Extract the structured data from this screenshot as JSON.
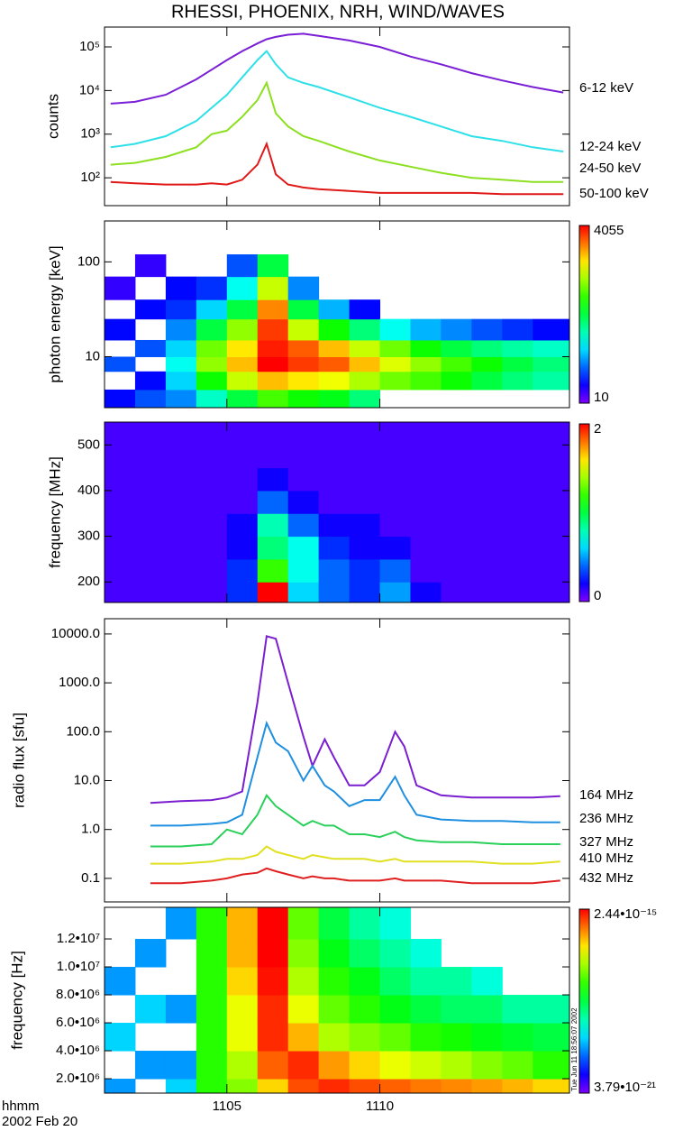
{
  "chart_data": [
    {
      "type": "line",
      "title": "RHESSI, PHOENIX, NRH, WIND/WAVES",
      "ylabel": "counts",
      "log_y": true,
      "xlim": [
        1101,
        1116.2
      ],
      "ylim": [
        23,
        285000
      ],
      "yticks": [
        {
          "value": 100,
          "label": "10²"
        },
        {
          "value": 1000,
          "label": "10³"
        },
        {
          "value": 10000,
          "label": "10⁴"
        },
        {
          "value": 100000,
          "label": "10⁵"
        }
      ],
      "x": [
        1101.2,
        1102,
        1103,
        1104,
        1104.5,
        1105,
        1105.5,
        1106,
        1106.3,
        1106.6,
        1107,
        1107.5,
        1108,
        1109,
        1110,
        1111,
        1112,
        1113,
        1114,
        1115,
        1116
      ],
      "series": [
        {
          "name": "6-12 keV",
          "color": "#7a1fd6",
          "values": [
            5000,
            5500,
            8000,
            18000,
            30000,
            50000,
            80000,
            120000,
            150000,
            170000,
            190000,
            200000,
            180000,
            140000,
            100000,
            60000,
            40000,
            25000,
            17000,
            12000,
            9000
          ]
        },
        {
          "name": "12-24 keV",
          "color": "#2ee0e8",
          "values": [
            500,
            600,
            900,
            2000,
            4000,
            8000,
            20000,
            50000,
            80000,
            40000,
            20000,
            15000,
            12000,
            7000,
            4000,
            2500,
            1500,
            900,
            700,
            500,
            400
          ]
        },
        {
          "name": "24-50 keV",
          "color": "#8ce020",
          "values": [
            200,
            220,
            300,
            500,
            1000,
            1200,
            2500,
            6000,
            15000,
            3000,
            1500,
            900,
            700,
            400,
            250,
            180,
            130,
            100,
            90,
            80,
            80
          ]
        },
        {
          "name": "50-100 keV",
          "color": "#e01818",
          "values": [
            80,
            75,
            70,
            70,
            75,
            70,
            90,
            200,
            600,
            120,
            70,
            60,
            55,
            50,
            45,
            45,
            45,
            45,
            42,
            42,
            42
          ]
        }
      ]
    },
    {
      "type": "heatmap",
      "ylabel": "photon energy [keV]",
      "log_y": true,
      "log_color": true,
      "xlim": [
        1101,
        1116.2
      ],
      "ylim": [
        2.9,
        270
      ],
      "yticks": [
        10,
        100
      ],
      "clim": [
        10,
        4055
      ],
      "cticks": [
        10,
        4055
      ],
      "x": [
        1101,
        1102,
        1103,
        1104,
        1105,
        1106,
        1107,
        1108,
        1109,
        1110,
        1111,
        1112,
        1113,
        1114,
        1115,
        1116.2
      ],
      "y": [
        2.9,
        4.5,
        7,
        10,
        15,
        25,
        40,
        70,
        120,
        270
      ],
      "z": [
        [
          20,
          null,
          30,
          null,
          20,
          null,
          15,
          null,
          null
        ],
        [
          30,
          20,
          null,
          30,
          null,
          20,
          null,
          15,
          null
        ],
        [
          40,
          60,
          80,
          60,
          40,
          25,
          20,
          null,
          null
        ],
        [
          100,
          300,
          600,
          500,
          200,
          60,
          25,
          null,
          null
        ],
        [
          200,
          800,
          1500,
          1200,
          600,
          200,
          80,
          30,
          null
        ],
        [
          400,
          1500,
          4055,
          3500,
          3000,
          2000,
          800,
          200,
          null
        ],
        [
          300,
          1200,
          3000,
          2500,
          800,
          200,
          40,
          null,
          null
        ],
        [
          250,
          1000,
          2500,
          1500,
          300,
          50,
          null,
          null,
          null
        ],
        [
          150,
          700,
          1500,
          800,
          150,
          20,
          null,
          null,
          null
        ],
        [
          null,
          500,
          900,
          500,
          80,
          null,
          null,
          null,
          null
        ],
        [
          null,
          400,
          600,
          300,
          50,
          null,
          null,
          null,
          null
        ],
        [
          null,
          300,
          400,
          200,
          40,
          null,
          null,
          null,
          null
        ],
        [
          null,
          200,
          300,
          150,
          30,
          null,
          null,
          null,
          null
        ],
        [
          null,
          150,
          200,
          120,
          25,
          null,
          null,
          null,
          null
        ],
        [
          null,
          120,
          150,
          100,
          20,
          null,
          null,
          null,
          null
        ]
      ]
    },
    {
      "type": "heatmap",
      "ylabel": "frequency [MHz]",
      "log_y": false,
      "log_color": false,
      "xlim": [
        1101,
        1116.2
      ],
      "ylim": [
        155,
        550
      ],
      "yticks": [
        200,
        300,
        400,
        500
      ],
      "clim": [
        0,
        2
      ],
      "cticks": [
        0,
        2
      ],
      "x": [
        1101,
        1102,
        1103,
        1104,
        1105,
        1106,
        1107,
        1108,
        1109,
        1110,
        1111,
        1112,
        1113,
        1114,
        1115,
        1116.2
      ],
      "y": [
        155,
        200,
        250,
        300,
        350,
        400,
        450,
        500,
        550
      ],
      "z": [
        [
          0.1,
          0.1,
          0.1,
          0.1,
          0.1,
          0.1,
          0.1,
          0.1
        ],
        [
          0.1,
          0.1,
          0.1,
          0.1,
          0.1,
          0.1,
          0.1,
          0.1
        ],
        [
          0.1,
          0.1,
          0.1,
          0.1,
          0.1,
          0.1,
          0.1,
          0.1
        ],
        [
          0.1,
          0.1,
          0.1,
          0.1,
          0.1,
          0.1,
          0.1,
          0.1
        ],
        [
          0.3,
          0.3,
          0.2,
          0.2,
          0.1,
          0.1,
          0.1,
          0.1
        ],
        [
          2,
          1.2,
          0.9,
          0.8,
          0.4,
          0.2,
          0.1,
          0.1
        ],
        [
          0.6,
          0.7,
          0.7,
          0.4,
          0.2,
          0.1,
          0.1,
          0.1
        ],
        [
          0.4,
          0.4,
          0.3,
          0.2,
          0.1,
          0.1,
          0.1,
          0.1
        ],
        [
          0.3,
          0.3,
          0.2,
          0.2,
          0.1,
          0.1,
          0.1,
          0.1
        ],
        [
          0.5,
          0.4,
          0.2,
          0.1,
          0.1,
          0.1,
          0.1,
          0.1
        ],
        [
          0.2,
          0.1,
          0.1,
          0.1,
          0.1,
          0.1,
          0.1,
          0.1
        ],
        [
          0.1,
          0.1,
          0.1,
          0.1,
          0.1,
          0.1,
          0.1,
          0.1
        ],
        [
          0.1,
          0.1,
          0.1,
          0.1,
          0.1,
          0.1,
          0.1,
          0.1
        ],
        [
          0.1,
          0.1,
          0.1,
          0.1,
          0.1,
          0.1,
          0.1,
          0.1
        ],
        [
          0.1,
          0.1,
          0.1,
          0.1,
          0.1,
          0.1,
          0.1,
          0.1
        ]
      ]
    },
    {
      "type": "line",
      "ylabel": "radio flux [sfu]",
      "log_y": true,
      "xlim": [
        1101,
        1116.2
      ],
      "ylim": [
        0.033,
        20500
      ],
      "yticks": [
        0.1,
        {
          "value": 1,
          "label": "1.0"
        },
        {
          "value": 10,
          "label": "10.0"
        },
        {
          "value": 100,
          "label": "100.0"
        },
        {
          "value": 1000,
          "label": "1000.0"
        },
        {
          "value": 10000,
          "label": "10000.0"
        }
      ],
      "x": [
        1102.5,
        1103.5,
        1104.5,
        1105,
        1105.5,
        1106,
        1106.3,
        1106.6,
        1107,
        1107.5,
        1107.8,
        1108.2,
        1108.5,
        1109,
        1109.5,
        1110,
        1110.5,
        1110.8,
        1111.2,
        1112,
        1113,
        1114,
        1115,
        1115.9
      ],
      "series": [
        {
          "name": "164 MHz",
          "color": "#7a1fd0",
          "values": [
            3.5,
            3.8,
            4,
            4.5,
            6,
            400,
            9000,
            8000,
            1000,
            80,
            20,
            70,
            30,
            8,
            8,
            15,
            100,
            50,
            8,
            5,
            4.5,
            4.5,
            4.5,
            4.8
          ]
        },
        {
          "name": "236 MHz",
          "color": "#1f8fe0",
          "values": [
            1.2,
            1.2,
            1.3,
            1.4,
            2,
            30,
            150,
            60,
            40,
            10,
            20,
            8,
            6,
            3,
            4,
            4,
            12,
            5,
            2,
            1.6,
            1.5,
            1.5,
            1.4,
            1.4
          ]
        },
        {
          "name": "327 MHz",
          "color": "#2ad05a",
          "values": [
            0.45,
            0.45,
            0.5,
            1.0,
            0.8,
            2,
            5,
            3,
            2,
            1.2,
            1.5,
            1.2,
            1.2,
            0.8,
            0.8,
            0.7,
            0.9,
            0.7,
            0.6,
            0.55,
            0.55,
            0.5,
            0.5,
            0.5
          ]
        },
        {
          "name": "410 MHz",
          "color": "#e0e020",
          "values": [
            0.2,
            0.2,
            0.22,
            0.25,
            0.25,
            0.3,
            0.45,
            0.35,
            0.3,
            0.25,
            0.3,
            0.27,
            0.25,
            0.25,
            0.25,
            0.22,
            0.25,
            0.22,
            0.22,
            0.22,
            0.22,
            0.2,
            0.2,
            0.22
          ]
        },
        {
          "name": "432 MHz",
          "color": "#e02020",
          "values": [
            0.08,
            0.08,
            0.09,
            0.1,
            0.12,
            0.13,
            0.16,
            0.14,
            0.12,
            0.1,
            0.11,
            0.1,
            0.1,
            0.09,
            0.09,
            0.09,
            0.1,
            0.09,
            0.09,
            0.09,
            0.08,
            0.08,
            0.08,
            0.09
          ]
        }
      ]
    },
    {
      "type": "heatmap",
      "ylabel": "frequency [Hz]",
      "log_y": false,
      "log_color": true,
      "xlabel": "hhmm",
      "date": "2002 Feb 20",
      "timestamp": "Tue Jun 11 18:56:07 2002",
      "xlim": [
        1101,
        1116.2
      ],
      "xticks": [
        1105,
        1110
      ],
      "ylim": [
        970000,
        14260000
      ],
      "yticks": [
        {
          "value": 2000000,
          "label": "2.0•10⁶"
        },
        {
          "value": 4000000,
          "label": "4.0•10⁶"
        },
        {
          "value": 6000000,
          "label": "6.0•10⁶"
        },
        {
          "value": 8000000,
          "label": "8.0•10⁶"
        },
        {
          "value": 10000000,
          "label": "1.0•10⁷"
        },
        {
          "value": 12000000,
          "label": "1.2•10⁷"
        }
      ],
      "clim": [
        3.79e-21,
        2.44e-15
      ],
      "cticks": [
        {
          "value": 3.79e-21,
          "label": "3.79•10⁻²¹"
        },
        {
          "value": 2.44e-15,
          "label": "2.44•10⁻¹⁵"
        }
      ],
      "x": [
        1101,
        1102,
        1103,
        1104,
        1105,
        1106,
        1107,
        1108,
        1109,
        1110,
        1111,
        1112,
        1113,
        1114,
        1115,
        1116.2
      ],
      "y": [
        970000,
        2000000,
        4000000,
        6000000,
        8000000,
        10000000,
        12000000,
        14260000
      ],
      "z": [
        [
          1e-19,
          null,
          2e-19,
          null,
          1e-19,
          null,
          null
        ],
        [
          null,
          1e-19,
          null,
          2e-19,
          null,
          1e-19,
          null
        ],
        [
          2e-19,
          1e-19,
          null,
          1e-19,
          null,
          null,
          1e-19
        ],
        [
          1e-17,
          1e-17,
          1e-17,
          1e-17,
          1e-17,
          1e-17,
          1e-17
        ],
        [
          3e-17,
          5e-17,
          1e-16,
          1e-16,
          2e-16,
          3e-16,
          3e-16
        ],
        [
          2e-16,
          8e-16,
          1.5e-15,
          1.5e-15,
          2e-15,
          2.44e-15,
          2.44e-15
        ],
        [
          1e-15,
          1.5e-15,
          3e-16,
          1e-16,
          5e-17,
          3e-17,
          2e-17
        ],
        [
          1.5e-15,
          4e-16,
          5e-17,
          2e-17,
          1e-17,
          5e-18,
          3e-18
        ],
        [
          1e-15,
          2e-16,
          3e-17,
          1e-17,
          5e-18,
          2e-18,
          1e-18
        ],
        [
          8e-16,
          1e-16,
          2e-17,
          5e-18,
          2e-18,
          1e-18,
          5e-19
        ],
        [
          6e-16,
          7e-17,
          1e-17,
          3e-18,
          1e-18,
          5e-19,
          null
        ],
        [
          5e-16,
          5e-17,
          8e-18,
          2e-18,
          1e-18,
          null,
          null
        ],
        [
          4e-16,
          3e-17,
          5e-18,
          2e-18,
          5e-19,
          null,
          null
        ],
        [
          3e-16,
          2e-17,
          4e-18,
          1e-18,
          null,
          null,
          null
        ],
        [
          2e-16,
          1e-17,
          3e-18,
          1e-18,
          null,
          null,
          null
        ]
      ]
    }
  ]
}
